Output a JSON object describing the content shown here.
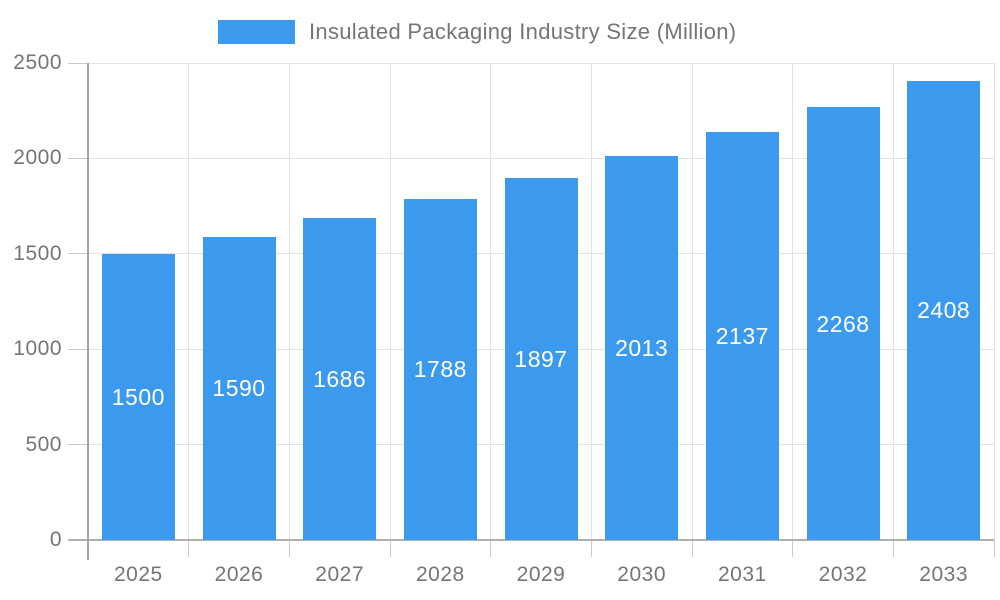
{
  "legend": {
    "label": "Insulated Packaging Industry Size (Million)"
  },
  "chart_data": {
    "type": "bar",
    "title": "Insulated Packaging Industry Size (Million)",
    "series_name": "Insulated Packaging Industry Size (Million)",
    "categories": [
      "2025",
      "2026",
      "2027",
      "2028",
      "2029",
      "2030",
      "2031",
      "2032",
      "2033"
    ],
    "values": [
      1500,
      1590,
      1686,
      1788,
      1897,
      2013,
      2137,
      2268,
      2408
    ],
    "xlabel": "",
    "ylabel": "",
    "ylim": [
      0,
      2500
    ],
    "yticks": [
      0,
      500,
      1000,
      1500,
      2000,
      2500
    ],
    "grid": true,
    "legend_position": "top-center",
    "value_labels_inside_bars": true,
    "colors": {
      "bar": "#3B99EE",
      "value_label": "#FFFFFF",
      "axis_text": "#757575",
      "legend_text": "#757575",
      "gridline": "#E2E2E2",
      "tick": "#C9C9C9",
      "axis_line_y": "#A3A3A3",
      "axis_line_x": "#B0B0B0",
      "background": "#FFFFFF"
    }
  }
}
